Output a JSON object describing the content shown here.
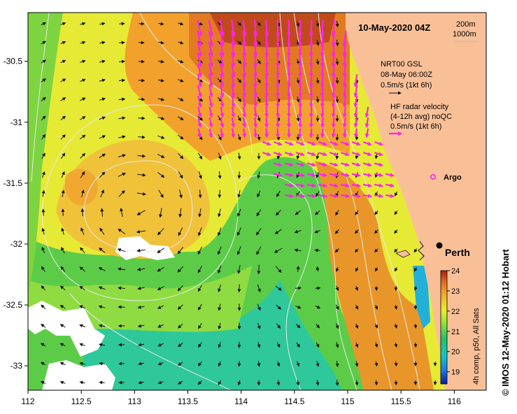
{
  "map": {
    "title": "10-May-2020 04Z",
    "x_ticks": [
      "112",
      "112.5",
      "113",
      "113.5",
      "114",
      "114.5",
      "115",
      "115.5",
      "116"
    ],
    "y_ticks": [
      "-30.5",
      "-31",
      "-31.5",
      "-32",
      "-32.5",
      "-33"
    ],
    "lon_range": [
      112,
      116.3
    ],
    "lat_range": [
      -33.2,
      -30.1
    ],
    "isobath_legend": [
      "200m",
      "1000m"
    ],
    "gsl_legend": [
      "NRT00 GSL",
      "08-May 06:00Z",
      "0.5m/s (1kt 6h)"
    ],
    "hf_legend": [
      "HF radar velocity",
      "(4-12h avg) noQC",
      "0.5m/s (1kt 6h)"
    ],
    "argo_label": "Argo",
    "city_label": "Perth",
    "colorbar": {
      "ticks": [
        "24",
        "23",
        "22",
        "21",
        "20",
        "19"
      ],
      "min": 18.4,
      "max": 24,
      "label": "4h comp, p50, All Sats"
    },
    "credit": "© IMOS 12-May-2020 01:12 Hobart",
    "colors": {
      "land": "#f9c098",
      "hf_arrow": "#ff22ee",
      "gsl_arrow": "#111111",
      "contour": "#e8e8e8"
    }
  }
}
